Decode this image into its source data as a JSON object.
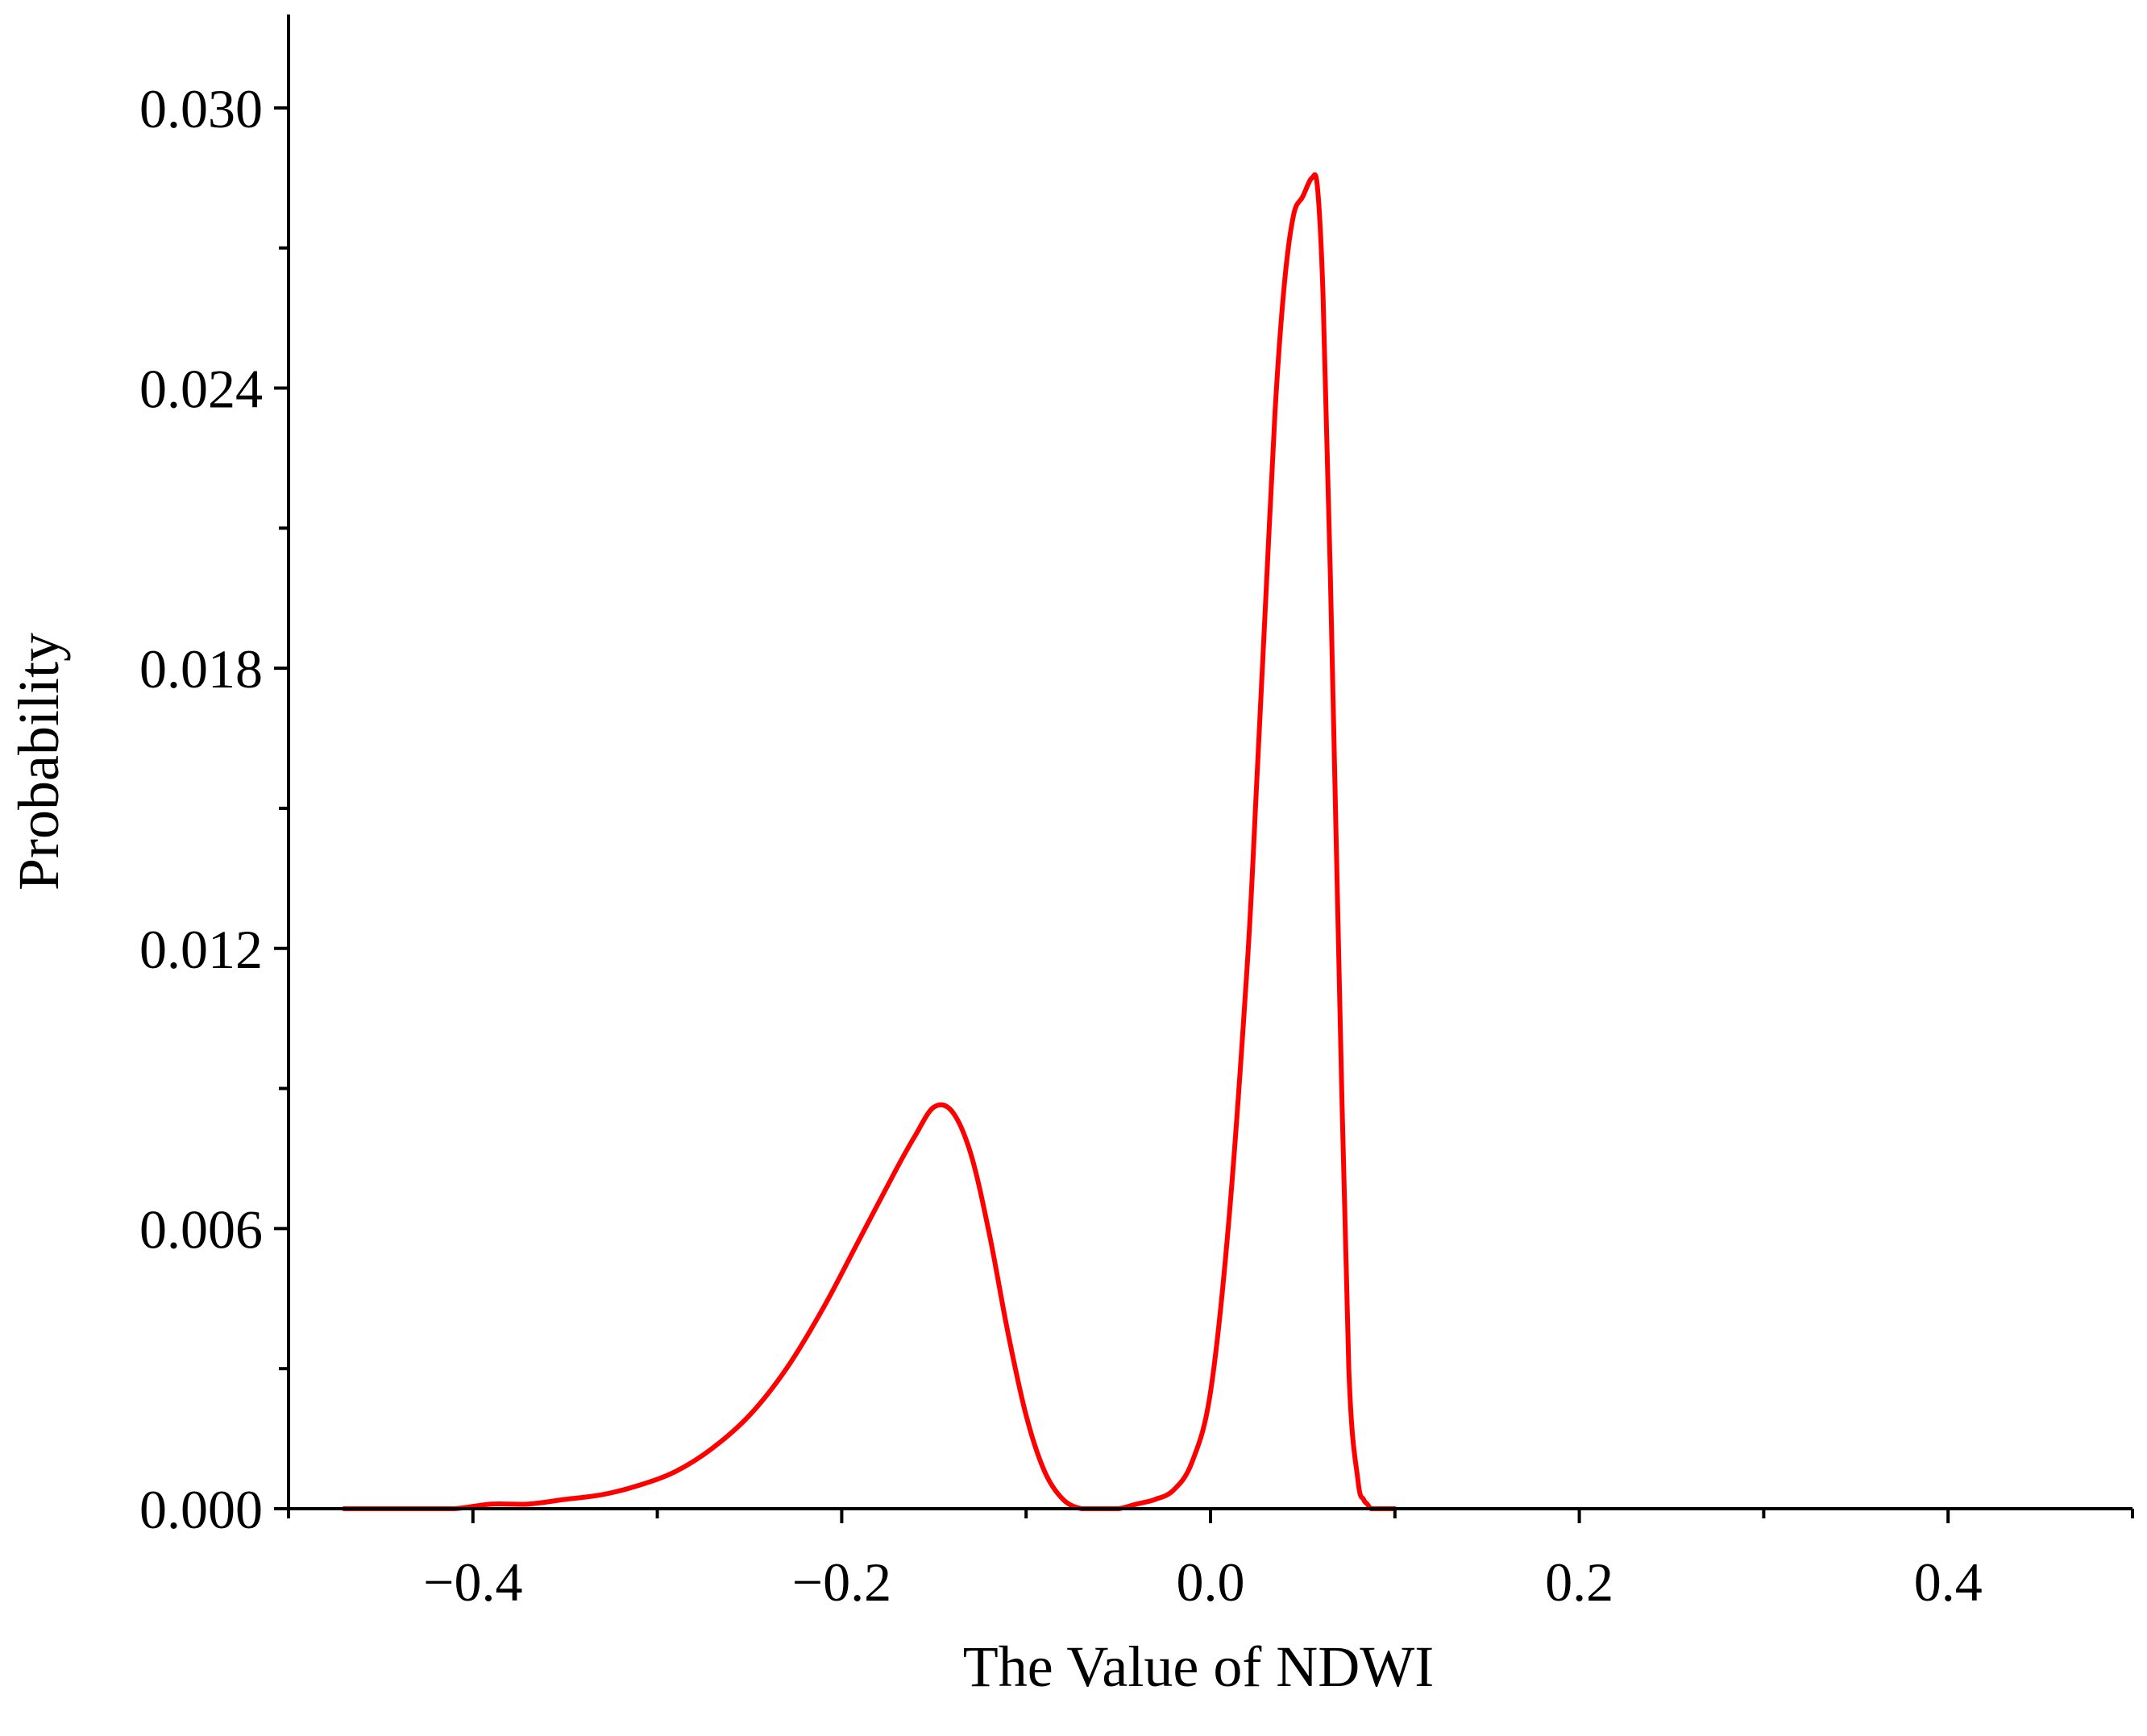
{
  "chart_data": {
    "type": "line",
    "title": "",
    "xlabel": "The Value of NDWI",
    "ylabel": "Probability",
    "xlim": [
      -0.5,
      0.5
    ],
    "ylim": [
      0,
      0.032
    ],
    "x_ticks": [
      -0.4,
      -0.2,
      0.0,
      0.2,
      0.4
    ],
    "x_tick_labels": [
      "−0.4",
      "−0.2",
      "0.0",
      "0.2",
      "0.4"
    ],
    "x_minor_ticks": [
      -0.5,
      -0.3,
      -0.1,
      0.1,
      0.3,
      0.5
    ],
    "y_ticks": [
      0.0,
      0.006,
      0.012,
      0.018,
      0.024,
      0.03
    ],
    "y_tick_labels": [
      "0.000",
      "0.006",
      "0.012",
      "0.018",
      "0.024",
      "0.030"
    ],
    "y_minor_ticks": [
      0.003,
      0.009,
      0.015,
      0.021,
      0.027
    ],
    "grid": false,
    "legend": "none",
    "color": "#ff0000",
    "series": [
      {
        "x": [
          -0.47,
          -0.45,
          -0.43,
          -0.41,
          -0.39,
          -0.37,
          -0.35,
          -0.33,
          -0.31,
          -0.29,
          -0.27,
          -0.25,
          -0.23,
          -0.21,
          -0.19,
          -0.17,
          -0.16,
          -0.15,
          -0.14,
          -0.13,
          -0.12,
          -0.11,
          -0.1,
          -0.09,
          -0.08,
          -0.07,
          -0.06,
          -0.05,
          -0.04,
          -0.03,
          -0.02,
          -0.01,
          0.0,
          0.01,
          0.02,
          0.025,
          0.03,
          0.035,
          0.04,
          0.045,
          0.05,
          0.055,
          0.058,
          0.061,
          0.065,
          0.07,
          0.075,
          0.08,
          0.083,
          0.085,
          0.087,
          0.09,
          0.1
        ],
        "y": [
          0.0,
          0.0,
          0.0,
          0.0,
          0.0001,
          0.0001,
          0.0002,
          0.0003,
          0.0005,
          0.0008,
          0.0013,
          0.002,
          0.003,
          0.0043,
          0.0058,
          0.0073,
          0.008,
          0.0086,
          0.0085,
          0.0076,
          0.0059,
          0.0038,
          0.002,
          0.0008,
          0.0002,
          0.0,
          0.0,
          0.0,
          0.0001,
          0.0002,
          0.0004,
          0.001,
          0.0025,
          0.0062,
          0.0117,
          0.0155,
          0.0195,
          0.0235,
          0.0262,
          0.0277,
          0.0281,
          0.0285,
          0.0283,
          0.026,
          0.02,
          0.011,
          0.003,
          0.0006,
          0.0002,
          0.0001,
          0.0,
          0.0,
          0.0
        ]
      }
    ]
  }
}
